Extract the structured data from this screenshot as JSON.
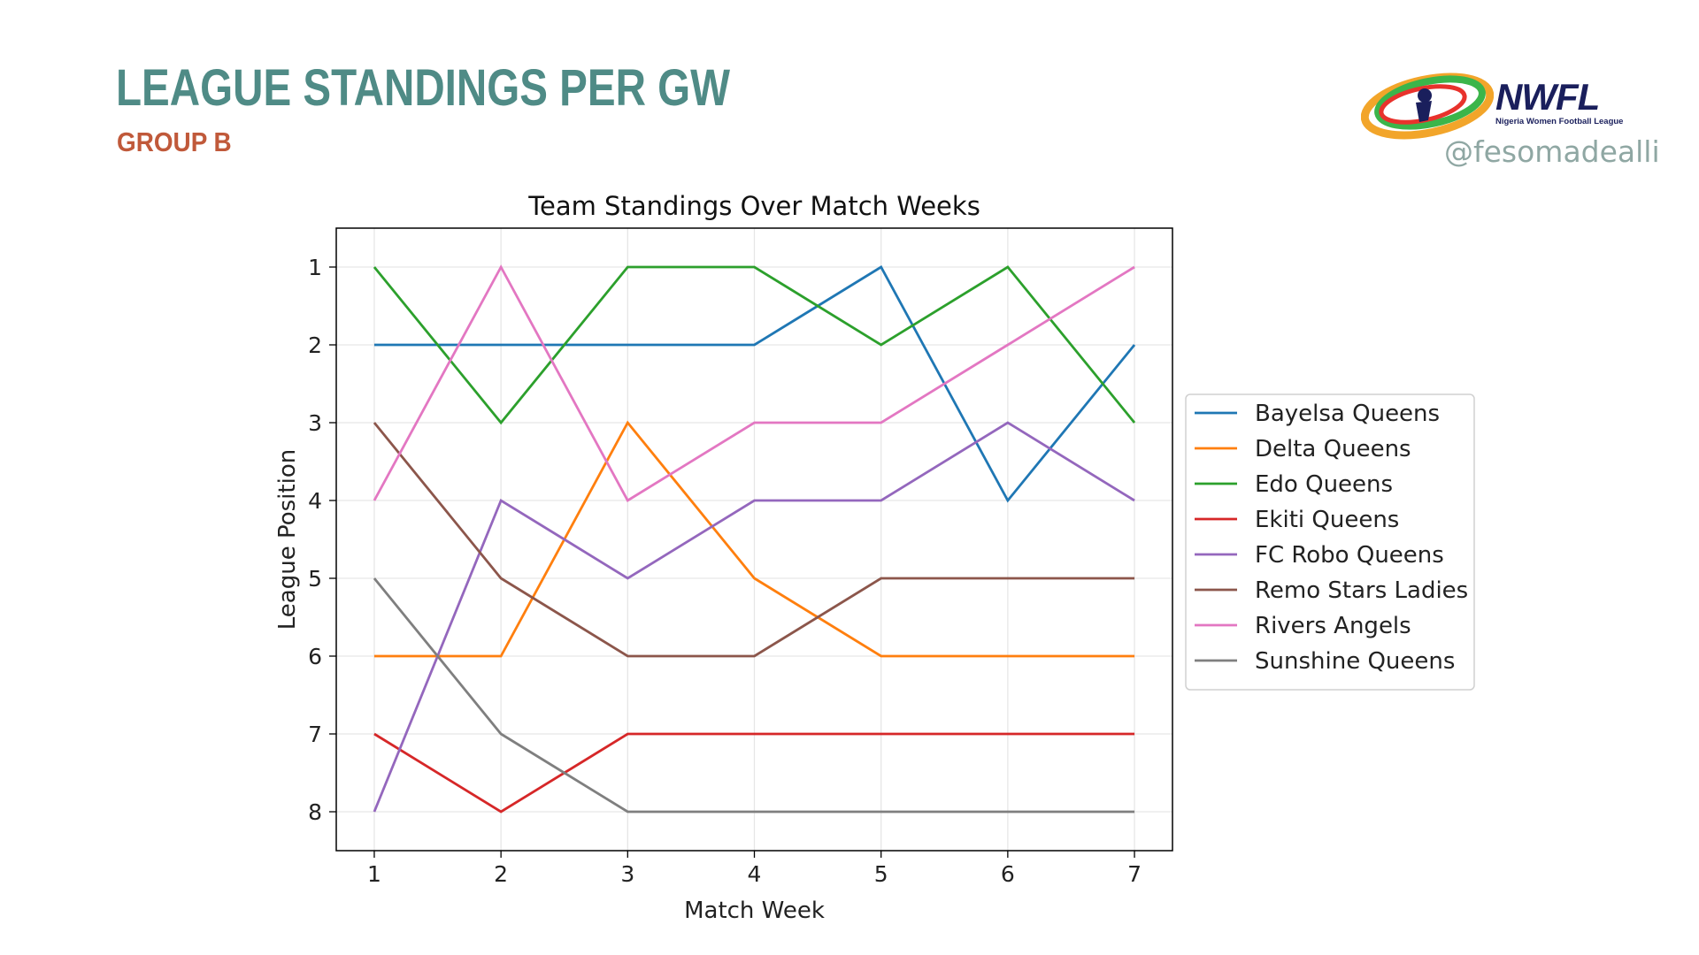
{
  "header": {
    "title": "LEAGUE STANDINGS PER GW",
    "subtitle": "GROUP B",
    "logo_text": "NWFL",
    "logo_subtitle": "Nigeria Women Football League",
    "handle": "@fesomadealli"
  },
  "colors": {
    "title": "#4f8b86",
    "subtitle": "#c0593a",
    "logo_navy": "#1a1f5c"
  },
  "chart_data": {
    "type": "line",
    "title": "Team Standings Over Match Weeks",
    "xlabel": "Match Week",
    "ylabel": "League Position",
    "x": [
      1,
      2,
      3,
      4,
      5,
      6,
      7
    ],
    "xlim": [
      0.7,
      7.3
    ],
    "ylim": [
      8.5,
      0.5
    ],
    "y_inverted": true,
    "yticks": [
      1,
      2,
      3,
      4,
      5,
      6,
      7,
      8
    ],
    "grid": true,
    "legend_position": "center-right outside",
    "series": [
      {
        "name": "Bayelsa Queens",
        "color": "#1f77b4",
        "values": [
          2,
          2,
          2,
          2,
          1,
          4,
          2
        ]
      },
      {
        "name": "Delta Queens",
        "color": "#ff7f0e",
        "values": [
          6,
          6,
          3,
          5,
          6,
          6,
          6
        ]
      },
      {
        "name": "Edo Queens",
        "color": "#2ca02c",
        "values": [
          1,
          3,
          1,
          1,
          2,
          1,
          3
        ]
      },
      {
        "name": "Ekiti Queens",
        "color": "#d62728",
        "values": [
          7,
          8,
          7,
          7,
          7,
          7,
          7
        ]
      },
      {
        "name": "FC Robo Queens",
        "color": "#9467bd",
        "values": [
          8,
          4,
          5,
          4,
          4,
          3,
          4
        ]
      },
      {
        "name": "Remo Stars Ladies",
        "color": "#8c564b",
        "values": [
          3,
          5,
          6,
          6,
          5,
          5,
          5
        ]
      },
      {
        "name": "Rivers Angels",
        "color": "#e377c2",
        "values": [
          4,
          1,
          4,
          3,
          3,
          2,
          1
        ]
      },
      {
        "name": "Sunshine Queens",
        "color": "#7f7f7f",
        "values": [
          5,
          7,
          8,
          8,
          8,
          8,
          8
        ]
      }
    ]
  }
}
